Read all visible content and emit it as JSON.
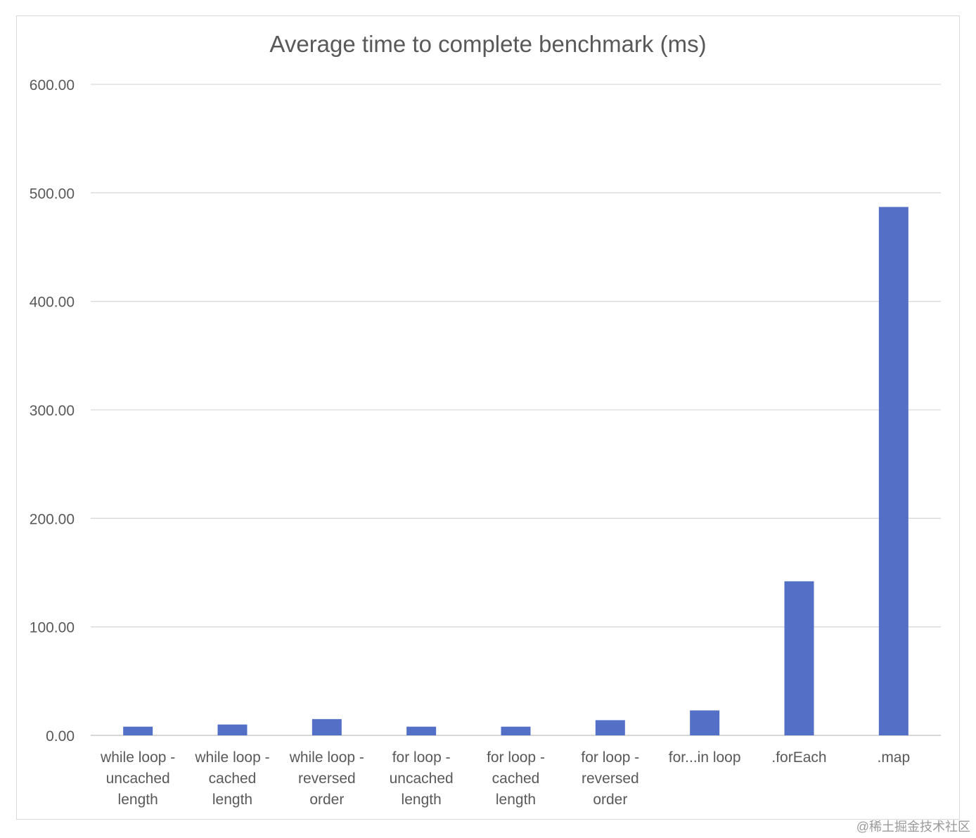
{
  "chart_data": {
    "type": "bar",
    "title": "Average time to complete benchmark (ms)",
    "xlabel": "",
    "ylabel": "",
    "ylim": [
      0,
      600
    ],
    "yticks": [
      "0.00",
      "100.00",
      "200.00",
      "300.00",
      "400.00",
      "500.00",
      "600.00"
    ],
    "ytick_values": [
      0,
      100,
      200,
      300,
      400,
      500,
      600
    ],
    "grid": true,
    "legend": "none",
    "bar_color": "#5470C6",
    "categories": [
      [
        "while loop -",
        "uncached",
        "length"
      ],
      [
        "while loop -",
        "cached",
        "length"
      ],
      [
        "while loop -",
        "reversed",
        "order"
      ],
      [
        "for loop -",
        "uncached",
        "length"
      ],
      [
        "for loop -",
        "cached",
        "length"
      ],
      [
        "for loop -",
        "reversed",
        "order"
      ],
      [
        "for...in loop"
      ],
      [
        ".forEach"
      ],
      [
        ".map"
      ]
    ],
    "values": [
      8,
      10,
      15,
      8,
      8,
      14,
      23,
      142,
      487
    ]
  },
  "watermark": "@稀土掘金技术社区"
}
